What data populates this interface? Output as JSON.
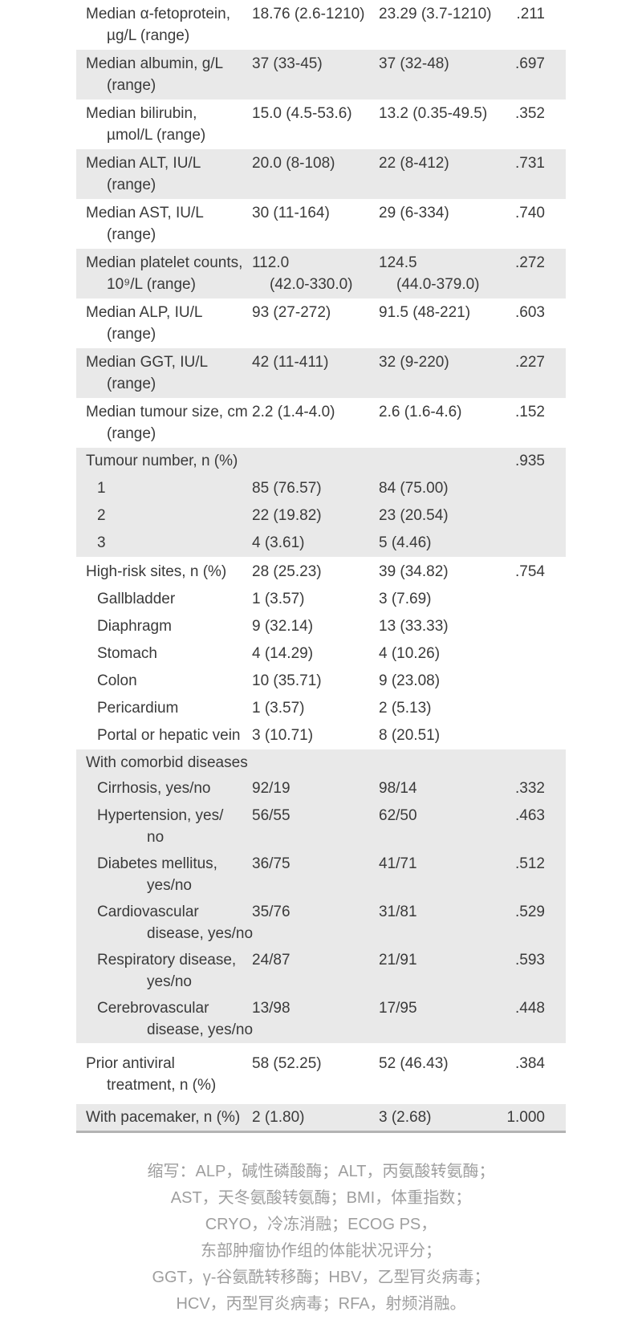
{
  "colors": {
    "stripe_row_bg": "#e9e9e9",
    "table_bottom_border": "#b3b3b3",
    "body_text": "#3a3a3a",
    "footnote_text": "#9e9e9e"
  },
  "table": {
    "rows": [
      {
        "bg": "white",
        "cls": "t-main2",
        "label": [
          "Median α-fetoprotein,",
          "µg/L (range)"
        ],
        "v1": [
          "18.76 (2.6-1210)"
        ],
        "v2": [
          "23.29 (3.7-1210)"
        ],
        "p": ".211"
      },
      {
        "bg": "gray",
        "cls": "t-main2",
        "label": [
          "Median albumin, g/L",
          "(range)"
        ],
        "v1": [
          "37 (33-45)"
        ],
        "v2": [
          "37 (32-48)"
        ],
        "p": ".697"
      },
      {
        "bg": "white",
        "cls": "t-main2",
        "label": [
          "Median bilirubin,",
          "µmol/L (range)"
        ],
        "v1": [
          "15.0 (4.5-53.6)"
        ],
        "v2": [
          "13.2 (0.35-49.5)"
        ],
        "p": ".352"
      },
      {
        "bg": "gray",
        "cls": "t-main2",
        "label": [
          "Median ALT, IU/L",
          "(range)"
        ],
        "v1": [
          "20.0 (8-108)"
        ],
        "v2": [
          "22 (8-412)"
        ],
        "p": ".731"
      },
      {
        "bg": "white",
        "cls": "t-main2",
        "label": [
          "Median AST, IU/L",
          "(range)"
        ],
        "v1": [
          "30 (11-164)"
        ],
        "v2": [
          "29 (6-334)"
        ],
        "p": ".740"
      },
      {
        "bg": "gray",
        "cls": "t-main2",
        "label": [
          "Median platelet counts,",
          "10⁹/L (range)"
        ],
        "v1": [
          "112.0",
          "(42.0-330.0)"
        ],
        "v2": [
          "124.5",
          "(44.0-379.0)"
        ],
        "p": ".272"
      },
      {
        "bg": "white",
        "cls": "t-main2",
        "label": [
          "Median ALP, IU/L",
          "(range)"
        ],
        "v1": [
          "93 (27-272)"
        ],
        "v2": [
          "91.5 (48-221)"
        ],
        "p": ".603"
      },
      {
        "bg": "gray",
        "cls": "t-main2",
        "label": [
          "Median GGT, IU/L",
          "(range)"
        ],
        "v1": [
          "42 (11-411)"
        ],
        "v2": [
          "32 (9-220)"
        ],
        "p": ".227"
      },
      {
        "bg": "white",
        "cls": "t-main2",
        "label": [
          "Median tumour size, cm",
          "(range)"
        ],
        "v1": [
          "2.2 (1.4-4.0)"
        ],
        "v2": [
          "2.6 (1.6-4.6)"
        ],
        "p": ".152"
      },
      {
        "bg": "gray",
        "cls": "t-head",
        "label": [
          "Tumour number, n (%)"
        ],
        "v1": [],
        "v2": [],
        "p": ".935"
      },
      {
        "bg": "gray",
        "cls": "t-sub1",
        "label": [
          "1"
        ],
        "v1": [
          "85 (76.57)"
        ],
        "v2": [
          "84 (75.00)"
        ],
        "p": ""
      },
      {
        "bg": "gray",
        "cls": "t-sub1",
        "label": [
          "2"
        ],
        "v1": [
          "22 (19.82)"
        ],
        "v2": [
          "23 (20.54)"
        ],
        "p": ""
      },
      {
        "bg": "gray",
        "cls": "t-sub1",
        "label": [
          "3"
        ],
        "v1": [
          "4 (3.61)"
        ],
        "v2": [
          "5 (4.46)"
        ],
        "p": ""
      },
      {
        "bg": "white",
        "cls": "t-headHi",
        "label": [
          "High-risk sites, n (%)"
        ],
        "v1": [
          "28 (25.23)"
        ],
        "v2": [
          "39 (34.82)"
        ],
        "p": ".754"
      },
      {
        "bg": "white",
        "cls": "t-sub1",
        "label": [
          "Gallbladder"
        ],
        "v1": [
          "1 (3.57)"
        ],
        "v2": [
          "3 (7.69)"
        ],
        "p": ""
      },
      {
        "bg": "white",
        "cls": "t-sub1",
        "label": [
          "Diaphragm"
        ],
        "v1": [
          "9 (32.14)"
        ],
        "v2": [
          "13 (33.33)"
        ],
        "p": ""
      },
      {
        "bg": "white",
        "cls": "t-sub1",
        "label": [
          "Stomach"
        ],
        "v1": [
          "4 (14.29)"
        ],
        "v2": [
          "4 (10.26)"
        ],
        "p": ""
      },
      {
        "bg": "white",
        "cls": "t-sub1",
        "label": [
          "Colon"
        ],
        "v1": [
          "10 (35.71)"
        ],
        "v2": [
          "9 (23.08)"
        ],
        "p": ""
      },
      {
        "bg": "white",
        "cls": "t-sub1",
        "label": [
          "Pericardium"
        ],
        "v1": [
          "1 (3.57)"
        ],
        "v2": [
          "2 (5.13)"
        ],
        "p": ""
      },
      {
        "bg": "white",
        "cls": "t-sub1",
        "label": [
          "Portal or hepatic vein"
        ],
        "v1": [
          "3 (10.71)"
        ],
        "v2": [
          "8 (20.51)"
        ],
        "p": ""
      },
      {
        "bg": "gray",
        "cls": "t-headCo",
        "label": [
          "With comorbid diseases"
        ],
        "v1": [],
        "v2": [],
        "p": ""
      },
      {
        "bg": "gray",
        "cls": "t-sub1",
        "label": [
          "Cirrhosis, yes/no"
        ],
        "v1": [
          "92/19"
        ],
        "v2": [
          "98/14"
        ],
        "p": ".332"
      },
      {
        "bg": "gray",
        "cls": "t-sub2",
        "label": [
          "Hypertension, yes/",
          "no"
        ],
        "v1": [
          "56/55"
        ],
        "v2": [
          "62/50"
        ],
        "p": ".463"
      },
      {
        "bg": "gray",
        "cls": "t-sub2",
        "label": [
          "Diabetes mellitus,",
          "yes/no"
        ],
        "v1": [
          "36/75"
        ],
        "v2": [
          "41/71"
        ],
        "p": ".512"
      },
      {
        "bg": "gray",
        "cls": "t-sub2",
        "label": [
          "Cardiovascular",
          "disease, yes/no"
        ],
        "v1": [
          "35/76"
        ],
        "v2": [
          "31/81"
        ],
        "p": ".529"
      },
      {
        "bg": "gray",
        "cls": "t-sub2",
        "label": [
          "Respiratory disease,",
          "yes/no"
        ],
        "v1": [
          "24/87"
        ],
        "v2": [
          "21/91"
        ],
        "p": ".593"
      },
      {
        "bg": "gray",
        "cls": "t-sub2",
        "label": [
          "Cerebrovascular",
          "disease, yes/no"
        ],
        "v1": [
          "13/98"
        ],
        "v2": [
          "17/95"
        ],
        "p": ".448"
      },
      {
        "bg": "white",
        "cls": "t-prior",
        "label": [
          "Prior antiviral",
          "treatment, n (%)"
        ],
        "v1": [
          "58 (52.25)"
        ],
        "v2": [
          "52 (46.43)"
        ],
        "p": ".384"
      },
      {
        "bg": "gray",
        "cls": "t-single",
        "label": [
          "With pacemaker, n (%)"
        ],
        "v1": [
          "2 (1.80)"
        ],
        "v2": [
          "3 (2.68)"
        ],
        "p": "1.000"
      }
    ]
  },
  "footnote": {
    "lines": [
      "缩写：ALP，碱性磷酸酶；ALT，丙氨酸转氨酶；",
      "AST，天冬氨酸转氨酶；BMI，体重指数；",
      "CRYO，冷冻消融；ECOG PS，",
      "东部肿瘤协作组的体能状况评分；",
      "GGT，γ-谷氨酰转移酶；HBV，乙型肎炎病毒；",
      "HCV，丙型肎炎病毒；RFA，射频消融。"
    ]
  }
}
